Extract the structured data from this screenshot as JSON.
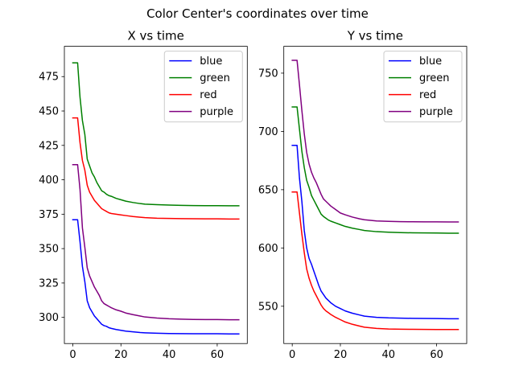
{
  "figure": {
    "suptitle": "Color Center's coordinates over time"
  },
  "chart_data": [
    {
      "type": "line",
      "title": "X vs time",
      "xlabel": "",
      "ylabel": "",
      "xlim": [
        -3.5,
        72.5
      ],
      "ylim": [
        281,
        497
      ],
      "xticks": [
        0,
        20,
        40,
        60
      ],
      "yticks": [
        300,
        325,
        350,
        375,
        400,
        425,
        450,
        475
      ],
      "legend": "top-right",
      "grid": false,
      "series": [
        {
          "name": "blue",
          "color": "#0000ff",
          "x": [
            0,
            2,
            3,
            4,
            5,
            6,
            7,
            8,
            9,
            10,
            11,
            12,
            13,
            14,
            15,
            16,
            18,
            20,
            22,
            25,
            28,
            30,
            35,
            40,
            45,
            50,
            55,
            60,
            65,
            69
          ],
          "y": [
            371,
            371,
            355,
            337,
            326,
            312,
            307,
            304,
            301,
            299,
            297,
            295,
            294,
            293.5,
            292.5,
            292,
            291.2,
            290.6,
            290,
            289.5,
            289,
            288.8,
            288.5,
            288.3,
            288.2,
            288.1,
            288.1,
            288.1,
            288,
            288
          ]
        },
        {
          "name": "green",
          "color": "#008000",
          "x": [
            0,
            2,
            3,
            4,
            5,
            6,
            7,
            8,
            9,
            10,
            11,
            12,
            13,
            14,
            15,
            16,
            18,
            20,
            22,
            25,
            28,
            30,
            35,
            40,
            45,
            50,
            55,
            60,
            65,
            69
          ],
          "y": [
            485,
            485,
            460,
            443,
            433,
            415,
            410,
            405,
            402,
            398,
            395,
            392,
            391,
            389.5,
            388.5,
            388,
            386.5,
            385.5,
            384.5,
            383.5,
            382.7,
            382.3,
            381.9,
            381.6,
            381.4,
            381.3,
            381.2,
            381.2,
            381.1,
            381.1
          ]
        },
        {
          "name": "red",
          "color": "#ff0000",
          "x": [
            0,
            2,
            3,
            4,
            5,
            6,
            7,
            8,
            9,
            10,
            11,
            12,
            13,
            14,
            15,
            16,
            18,
            20,
            22,
            25,
            28,
            30,
            35,
            40,
            45,
            50,
            55,
            60,
            65,
            69
          ],
          "y": [
            445,
            445,
            427,
            414,
            407,
            396,
            391,
            388,
            385,
            383,
            381,
            379,
            378,
            377,
            376,
            375.5,
            375,
            374.5,
            374,
            373.3,
            372.8,
            372.5,
            372.1,
            371.9,
            371.8,
            371.7,
            371.6,
            371.6,
            371.5,
            371.5
          ]
        },
        {
          "name": "purple",
          "color": "#800080",
          "x": [
            0,
            2,
            3,
            4,
            5,
            6,
            7,
            8,
            9,
            10,
            11,
            12,
            13,
            14,
            15,
            16,
            18,
            20,
            22,
            25,
            28,
            30,
            35,
            40,
            45,
            50,
            55,
            60,
            65,
            69
          ],
          "y": [
            411,
            411,
            393,
            365,
            351,
            336,
            330,
            326,
            322,
            319,
            316,
            312,
            310,
            309,
            308,
            307,
            305.5,
            304.5,
            303.2,
            302,
            301,
            300.3,
            299.5,
            299,
            298.7,
            298.5,
            298.4,
            298.4,
            298.3,
            298.3
          ]
        }
      ]
    },
    {
      "type": "line",
      "title": "Y vs time",
      "xlabel": "",
      "ylabel": "",
      "xlim": [
        -3.5,
        72.5
      ],
      "ylim": [
        518,
        773
      ],
      "xticks": [
        0,
        20,
        40,
        60
      ],
      "yticks": [
        550,
        600,
        650,
        700,
        750
      ],
      "legend": "top-right",
      "grid": false,
      "series": [
        {
          "name": "blue",
          "color": "#0000ff",
          "x": [
            0,
            2,
            3,
            4,
            5,
            6,
            7,
            8,
            9,
            10,
            11,
            12,
            13,
            14,
            15,
            16,
            18,
            20,
            22,
            25,
            28,
            30,
            35,
            40,
            45,
            50,
            55,
            60,
            65,
            69
          ],
          "y": [
            688,
            688,
            660,
            640,
            615,
            600,
            591,
            586,
            580,
            574,
            568,
            563,
            560,
            557,
            555,
            553,
            550,
            548,
            546,
            544,
            542.5,
            541.5,
            540.5,
            540,
            539.8,
            539.6,
            539.5,
            539.4,
            539.3,
            539.3
          ]
        },
        {
          "name": "green",
          "color": "#008000",
          "x": [
            0,
            2,
            3,
            4,
            5,
            6,
            7,
            8,
            9,
            10,
            11,
            12,
            13,
            14,
            15,
            16,
            18,
            20,
            22,
            25,
            28,
            30,
            35,
            40,
            45,
            50,
            55,
            60,
            65,
            69
          ],
          "y": [
            721,
            721,
            702,
            683,
            669,
            658,
            652,
            645,
            641,
            637,
            633,
            629,
            627,
            625.5,
            624,
            623,
            621.5,
            620,
            618.5,
            617,
            615.8,
            615,
            614,
            613.5,
            613.2,
            613,
            612.9,
            612.8,
            612.7,
            612.7
          ]
        },
        {
          "name": "red",
          "color": "#ff0000",
          "x": [
            0,
            2,
            3,
            4,
            5,
            6,
            7,
            8,
            9,
            10,
            11,
            12,
            13,
            14,
            15,
            16,
            18,
            20,
            22,
            25,
            28,
            30,
            35,
            40,
            45,
            50,
            55,
            60,
            65,
            69
          ],
          "y": [
            648,
            648,
            630,
            612,
            596,
            582,
            574,
            568,
            563,
            559,
            555,
            551,
            548,
            546,
            544.5,
            543,
            540.5,
            538.5,
            536.5,
            534.5,
            533,
            532,
            531,
            530.5,
            530.3,
            530.2,
            530.1,
            530,
            530,
            530
          ]
        },
        {
          "name": "purple",
          "color": "#800080",
          "x": [
            0,
            2,
            3,
            4,
            5,
            6,
            7,
            8,
            9,
            10,
            11,
            12,
            13,
            14,
            15,
            16,
            18,
            20,
            22,
            25,
            28,
            30,
            35,
            40,
            45,
            50,
            55,
            60,
            65,
            69
          ],
          "y": [
            761,
            761,
            740,
            718,
            698,
            682,
            672,
            665,
            660,
            656,
            651,
            646,
            642,
            640,
            638,
            636,
            633,
            630,
            628.5,
            626.5,
            625,
            624.2,
            623.2,
            622.8,
            622.6,
            622.5,
            622.4,
            622.4,
            622.3,
            622.3
          ]
        }
      ]
    }
  ]
}
